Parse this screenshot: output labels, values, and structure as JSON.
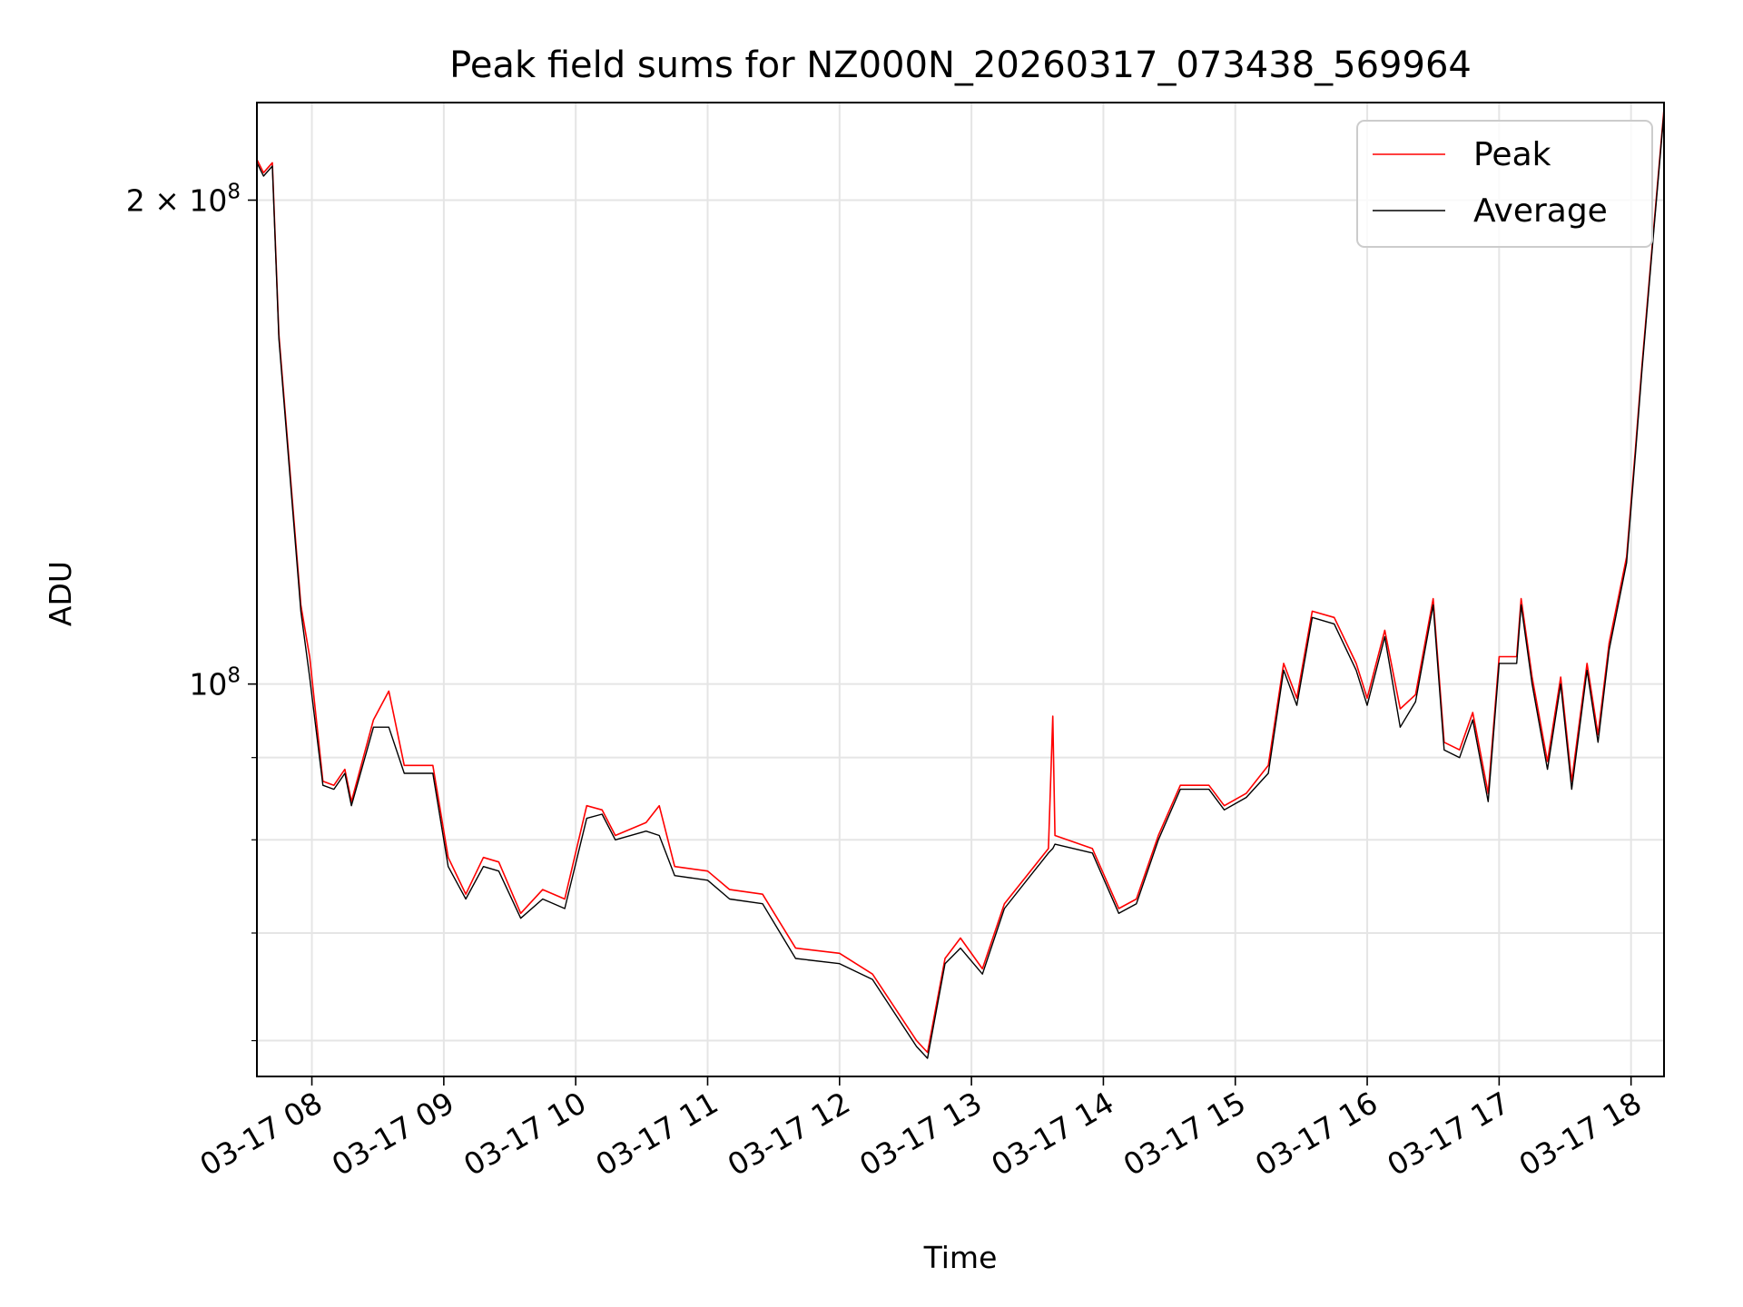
{
  "chart_data": {
    "type": "line",
    "title": "Peak field sums for NZ000N_20260317_073438_569964",
    "xlabel": "Time",
    "ylabel": "ADU",
    "y_scale": "log",
    "ylim": [
      57000000,
      230000000
    ],
    "xlim": [
      "2026-03-17T07:35",
      "2026-03-17T18:15"
    ],
    "x_ticks": [
      {
        "x": "2026-03-17T08:00",
        "label": "03-17 08"
      },
      {
        "x": "2026-03-17T09:00",
        "label": "03-17 09"
      },
      {
        "x": "2026-03-17T10:00",
        "label": "03-17 10"
      },
      {
        "x": "2026-03-17T11:00",
        "label": "03-17 11"
      },
      {
        "x": "2026-03-17T12:00",
        "label": "03-17 12"
      },
      {
        "x": "2026-03-17T13:00",
        "label": "03-17 13"
      },
      {
        "x": "2026-03-17T14:00",
        "label": "03-17 14"
      },
      {
        "x": "2026-03-17T15:00",
        "label": "03-17 15"
      },
      {
        "x": "2026-03-17T16:00",
        "label": "03-17 16"
      },
      {
        "x": "2026-03-17T17:00",
        "label": "03-17 17"
      },
      {
        "x": "2026-03-17T18:00",
        "label": "03-17 18"
      }
    ],
    "y_major_ticks": [
      {
        "y": 100000000,
        "label_base": "10",
        "label_exp": "8"
      },
      {
        "y": 200000000,
        "label_base": "2 × 10",
        "label_exp": "8"
      }
    ],
    "y_minor_ticks": [
      60000000,
      70000000,
      80000000,
      90000000
    ],
    "grid": true,
    "legend_position": "top-right",
    "series": [
      {
        "name": "Peak",
        "color": "#ff0000",
        "points": [
          [
            "2026-03-17T07:35",
            212000000
          ],
          [
            "2026-03-17T07:38",
            208000000
          ],
          [
            "2026-03-17T07:42",
            211000000
          ],
          [
            "2026-03-17T07:45",
            165000000
          ],
          [
            "2026-03-17T07:55",
            112000000
          ],
          [
            "2026-03-17T07:59",
            104000000
          ],
          [
            "2026-03-17T08:05",
            87000000
          ],
          [
            "2026-03-17T08:10",
            86500000
          ],
          [
            "2026-03-17T08:15",
            88500000
          ],
          [
            "2026-03-17T08:18",
            84500000
          ],
          [
            "2026-03-17T08:28",
            95000000
          ],
          [
            "2026-03-17T08:35",
            99000000
          ],
          [
            "2026-03-17T08:42",
            89000000
          ],
          [
            "2026-03-17T08:55",
            89000000
          ],
          [
            "2026-03-17T09:02",
            78000000
          ],
          [
            "2026-03-17T09:10",
            74000000
          ],
          [
            "2026-03-17T09:18",
            78000000
          ],
          [
            "2026-03-17T09:25",
            77500000
          ],
          [
            "2026-03-17T09:35",
            72000000
          ],
          [
            "2026-03-17T09:45",
            74500000
          ],
          [
            "2026-03-17T09:55",
            73500000
          ],
          [
            "2026-03-17T10:05",
            84000000
          ],
          [
            "2026-03-17T10:12",
            83500000
          ],
          [
            "2026-03-17T10:18",
            80500000
          ],
          [
            "2026-03-17T10:32",
            82000000
          ],
          [
            "2026-03-17T10:38",
            84000000
          ],
          [
            "2026-03-17T10:45",
            77000000
          ],
          [
            "2026-03-17T11:00",
            76500000
          ],
          [
            "2026-03-17T11:10",
            74500000
          ],
          [
            "2026-03-17T11:25",
            74000000
          ],
          [
            "2026-03-17T11:40",
            68500000
          ],
          [
            "2026-03-17T12:00",
            68000000
          ],
          [
            "2026-03-17T12:15",
            66000000
          ],
          [
            "2026-03-17T12:35",
            60000000
          ],
          [
            "2026-03-17T12:40",
            59000000
          ],
          [
            "2026-03-17T12:48",
            67500000
          ],
          [
            "2026-03-17T12:55",
            69500000
          ],
          [
            "2026-03-17T13:05",
            66500000
          ],
          [
            "2026-03-17T13:15",
            73000000
          ],
          [
            "2026-03-17T13:35",
            79000000
          ],
          [
            "2026-03-17T13:37",
            95500000
          ],
          [
            "2026-03-17T13:38",
            80500000
          ],
          [
            "2026-03-17T13:55",
            79000000
          ],
          [
            "2026-03-17T14:07",
            72500000
          ],
          [
            "2026-03-17T14:15",
            73500000
          ],
          [
            "2026-03-17T14:25",
            80500000
          ],
          [
            "2026-03-17T14:35",
            86500000
          ],
          [
            "2026-03-17T14:48",
            86500000
          ],
          [
            "2026-03-17T14:55",
            84000000
          ],
          [
            "2026-03-17T15:05",
            85500000
          ],
          [
            "2026-03-17T15:15",
            89000000
          ],
          [
            "2026-03-17T15:22",
            103000000
          ],
          [
            "2026-03-17T15:28",
            98000000
          ],
          [
            "2026-03-17T15:35",
            111000000
          ],
          [
            "2026-03-17T15:45",
            110000000
          ],
          [
            "2026-03-17T15:55",
            103000000
          ],
          [
            "2026-03-17T16:00",
            98000000
          ],
          [
            "2026-03-17T16:08",
            108000000
          ],
          [
            "2026-03-17T16:15",
            96500000
          ],
          [
            "2026-03-17T16:22",
            98500000
          ],
          [
            "2026-03-17T16:30",
            113000000
          ],
          [
            "2026-03-17T16:35",
            92000000
          ],
          [
            "2026-03-17T16:42",
            91000000
          ],
          [
            "2026-03-17T16:48",
            96000000
          ],
          [
            "2026-03-17T16:55",
            85500000
          ],
          [
            "2026-03-17T17:00",
            104000000
          ],
          [
            "2026-03-17T17:08",
            104000000
          ],
          [
            "2026-03-17T17:10",
            113000000
          ],
          [
            "2026-03-17T17:15",
            101000000
          ],
          [
            "2026-03-17T17:22",
            89500000
          ],
          [
            "2026-03-17T17:28",
            101000000
          ],
          [
            "2026-03-17T17:33",
            87000000
          ],
          [
            "2026-03-17T17:40",
            103000000
          ],
          [
            "2026-03-17T17:45",
            93000000
          ],
          [
            "2026-03-17T17:50",
            106000000
          ],
          [
            "2026-03-17T17:58",
            120000000
          ],
          [
            "2026-03-17T18:02",
            140000000
          ],
          [
            "2026-03-17T18:05",
            158000000
          ],
          [
            "2026-03-17T18:10",
            190000000
          ],
          [
            "2026-03-17T18:15",
            228000000
          ]
        ]
      },
      {
        "name": "Average",
        "color": "#000000",
        "points": [
          [
            "2026-03-17T07:35",
            211000000
          ],
          [
            "2026-03-17T07:38",
            207000000
          ],
          [
            "2026-03-17T07:42",
            210000000
          ],
          [
            "2026-03-17T07:45",
            164000000
          ],
          [
            "2026-03-17T07:55",
            111000000
          ],
          [
            "2026-03-17T07:59",
            101000000
          ],
          [
            "2026-03-17T08:05",
            86500000
          ],
          [
            "2026-03-17T08:10",
            86000000
          ],
          [
            "2026-03-17T08:15",
            88000000
          ],
          [
            "2026-03-17T08:18",
            84000000
          ],
          [
            "2026-03-17T08:28",
            94000000
          ],
          [
            "2026-03-17T08:35",
            94000000
          ],
          [
            "2026-03-17T08:42",
            88000000
          ],
          [
            "2026-03-17T08:55",
            88000000
          ],
          [
            "2026-03-17T09:02",
            77000000
          ],
          [
            "2026-03-17T09:10",
            73500000
          ],
          [
            "2026-03-17T09:18",
            77000000
          ],
          [
            "2026-03-17T09:25",
            76500000
          ],
          [
            "2026-03-17T09:35",
            71500000
          ],
          [
            "2026-03-17T09:45",
            73500000
          ],
          [
            "2026-03-17T09:55",
            72500000
          ],
          [
            "2026-03-17T10:05",
            82500000
          ],
          [
            "2026-03-17T10:12",
            83000000
          ],
          [
            "2026-03-17T10:18",
            80000000
          ],
          [
            "2026-03-17T10:32",
            81000000
          ],
          [
            "2026-03-17T10:38",
            80500000
          ],
          [
            "2026-03-17T10:45",
            76000000
          ],
          [
            "2026-03-17T11:00",
            75500000
          ],
          [
            "2026-03-17T11:10",
            73500000
          ],
          [
            "2026-03-17T11:25",
            73000000
          ],
          [
            "2026-03-17T11:40",
            67500000
          ],
          [
            "2026-03-17T12:00",
            67000000
          ],
          [
            "2026-03-17T12:15",
            65500000
          ],
          [
            "2026-03-17T12:35",
            59500000
          ],
          [
            "2026-03-17T12:40",
            58500000
          ],
          [
            "2026-03-17T12:48",
            67000000
          ],
          [
            "2026-03-17T12:55",
            68500000
          ],
          [
            "2026-03-17T13:05",
            66000000
          ],
          [
            "2026-03-17T13:15",
            72500000
          ],
          [
            "2026-03-17T13:35",
            78500000
          ],
          [
            "2026-03-17T13:37",
            79000000
          ],
          [
            "2026-03-17T13:38",
            79500000
          ],
          [
            "2026-03-17T13:55",
            78500000
          ],
          [
            "2026-03-17T14:07",
            72000000
          ],
          [
            "2026-03-17T14:15",
            73000000
          ],
          [
            "2026-03-17T14:25",
            80000000
          ],
          [
            "2026-03-17T14:35",
            86000000
          ],
          [
            "2026-03-17T14:48",
            86000000
          ],
          [
            "2026-03-17T14:55",
            83500000
          ],
          [
            "2026-03-17T15:05",
            85000000
          ],
          [
            "2026-03-17T15:15",
            88000000
          ],
          [
            "2026-03-17T15:22",
            102000000
          ],
          [
            "2026-03-17T15:28",
            97000000
          ],
          [
            "2026-03-17T15:35",
            110000000
          ],
          [
            "2026-03-17T15:45",
            109000000
          ],
          [
            "2026-03-17T15:55",
            102000000
          ],
          [
            "2026-03-17T16:00",
            97000000
          ],
          [
            "2026-03-17T16:08",
            107000000
          ],
          [
            "2026-03-17T16:15",
            94000000
          ],
          [
            "2026-03-17T16:22",
            97500000
          ],
          [
            "2026-03-17T16:30",
            112000000
          ],
          [
            "2026-03-17T16:35",
            91000000
          ],
          [
            "2026-03-17T16:42",
            90000000
          ],
          [
            "2026-03-17T16:48",
            95000000
          ],
          [
            "2026-03-17T16:55",
            84500000
          ],
          [
            "2026-03-17T17:00",
            103000000
          ],
          [
            "2026-03-17T17:08",
            103000000
          ],
          [
            "2026-03-17T17:10",
            112000000
          ],
          [
            "2026-03-17T17:15",
            100000000
          ],
          [
            "2026-03-17T17:22",
            88500000
          ],
          [
            "2026-03-17T17:28",
            100000000
          ],
          [
            "2026-03-17T17:33",
            86000000
          ],
          [
            "2026-03-17T17:40",
            102000000
          ],
          [
            "2026-03-17T17:45",
            92000000
          ],
          [
            "2026-03-17T17:50",
            105000000
          ],
          [
            "2026-03-17T17:58",
            119000000
          ],
          [
            "2026-03-17T18:02",
            139000000
          ],
          [
            "2026-03-17T18:05",
            157000000
          ],
          [
            "2026-03-17T18:10",
            189000000
          ],
          [
            "2026-03-17T18:15",
            227000000
          ]
        ]
      }
    ]
  }
}
